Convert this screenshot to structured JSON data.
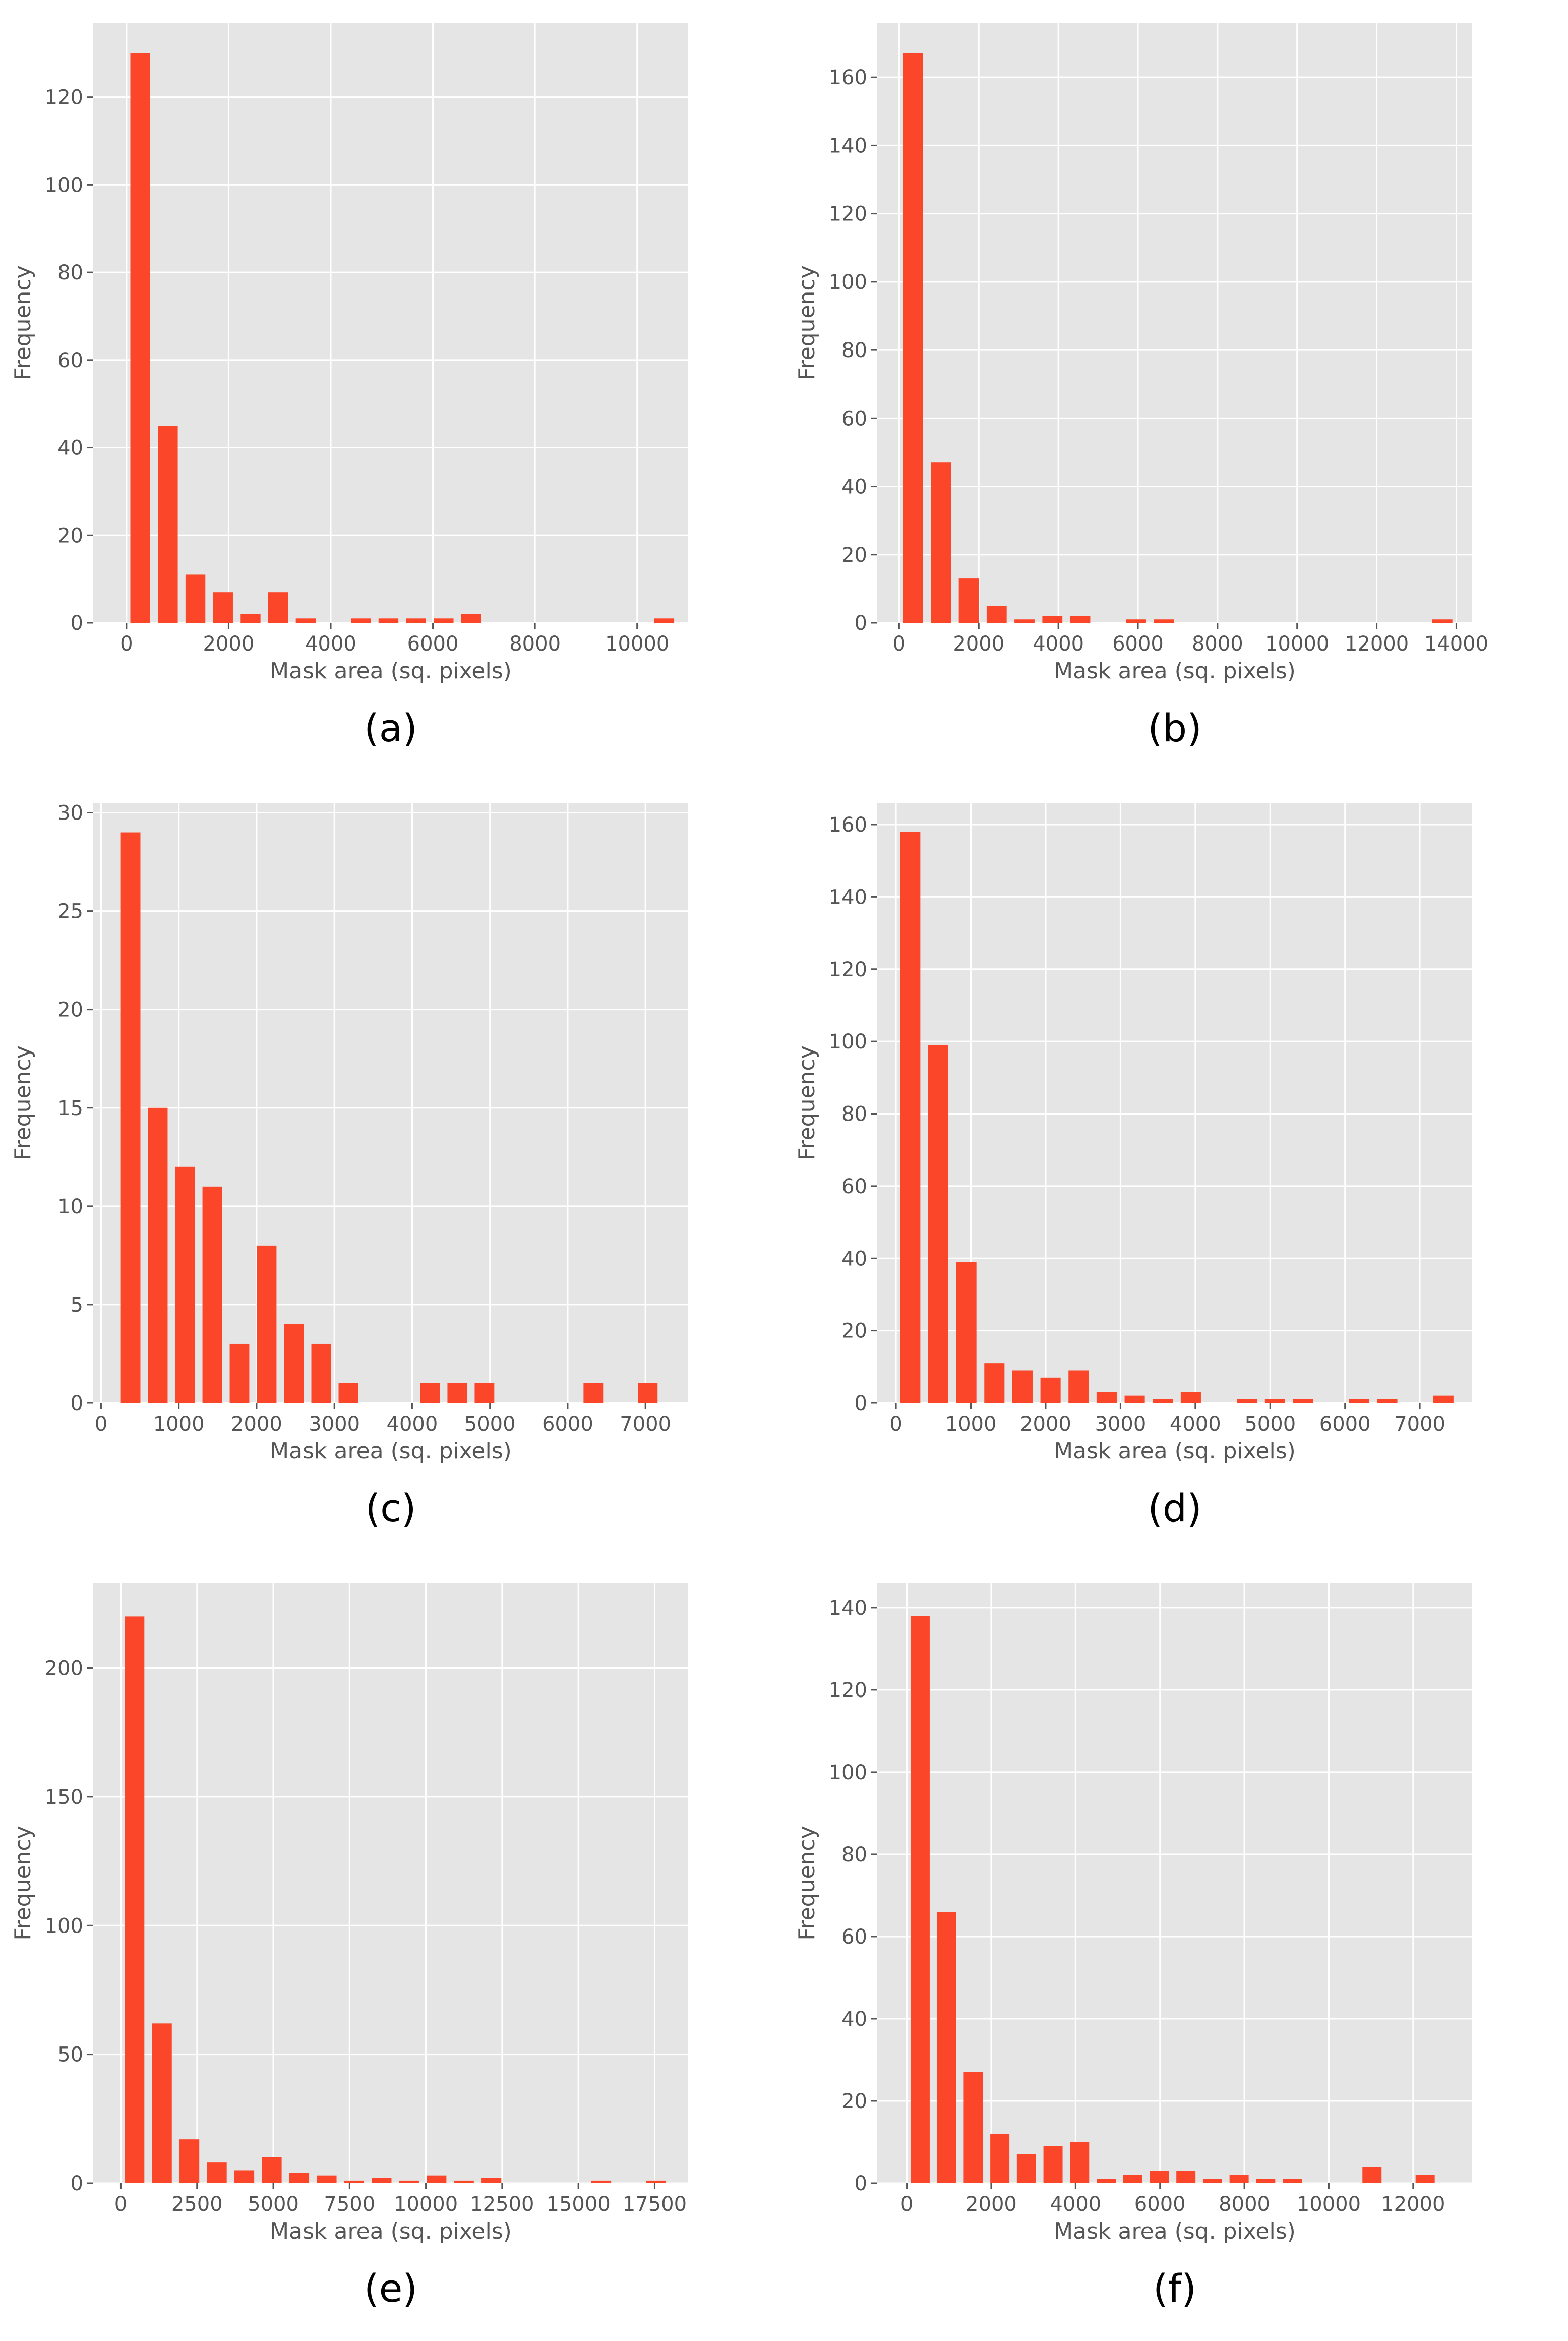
{
  "chart_data": [
    {
      "type": "bar",
      "caption": "(a)",
      "xlabel": "Mask area (sq. pixels)",
      "ylabel": "Frequency",
      "xlim": [
        -650,
        11000
      ],
      "ylim": [
        0,
        137
      ],
      "xticks": [
        0,
        2000,
        4000,
        6000,
        8000,
        10000
      ],
      "yticks": [
        0,
        20,
        40,
        60,
        80,
        100,
        120
      ],
      "bin_width": 540,
      "bins": [
        {
          "x": 270,
          "y": 130
        },
        {
          "x": 810,
          "y": 45
        },
        {
          "x": 1350,
          "y": 11
        },
        {
          "x": 1890,
          "y": 7
        },
        {
          "x": 2430,
          "y": 2
        },
        {
          "x": 2970,
          "y": 7
        },
        {
          "x": 3510,
          "y": 1
        },
        {
          "x": 4590,
          "y": 1
        },
        {
          "x": 5130,
          "y": 1
        },
        {
          "x": 5670,
          "y": 1
        },
        {
          "x": 6210,
          "y": 1
        },
        {
          "x": 6750,
          "y": 2
        },
        {
          "x": 10530,
          "y": 1
        }
      ]
    },
    {
      "type": "bar",
      "caption": "(b)",
      "xlabel": "Mask area (sq. pixels)",
      "ylabel": "Frequency",
      "xlim": [
        -550,
        14400
      ],
      "ylim": [
        0,
        176
      ],
      "xticks": [
        0,
        2000,
        4000,
        6000,
        8000,
        10000,
        12000,
        14000
      ],
      "yticks": [
        0,
        20,
        40,
        60,
        80,
        100,
        120,
        140,
        160
      ],
      "bin_width": 700,
      "bins": [
        {
          "x": 350,
          "y": 167
        },
        {
          "x": 1050,
          "y": 47
        },
        {
          "x": 1750,
          "y": 13
        },
        {
          "x": 2450,
          "y": 5
        },
        {
          "x": 3150,
          "y": 1
        },
        {
          "x": 3850,
          "y": 2
        },
        {
          "x": 4550,
          "y": 2
        },
        {
          "x": 5950,
          "y": 1
        },
        {
          "x": 6650,
          "y": 1
        },
        {
          "x": 13650,
          "y": 1
        }
      ]
    },
    {
      "type": "bar",
      "caption": "(c)",
      "xlabel": "Mask area (sq. pixels)",
      "ylabel": "Frequency",
      "xlim": [
        -100,
        7550
      ],
      "ylim": [
        0,
        30.5
      ],
      "xticks": [
        0,
        1000,
        2000,
        3000,
        4000,
        5000,
        6000,
        7000
      ],
      "yticks": [
        0,
        5,
        10,
        15,
        20,
        25,
        30
      ],
      "bin_width": 350,
      "bins": [
        {
          "x": 380,
          "y": 29
        },
        {
          "x": 730,
          "y": 15
        },
        {
          "x": 1080,
          "y": 12
        },
        {
          "x": 1430,
          "y": 11
        },
        {
          "x": 1780,
          "y": 3
        },
        {
          "x": 2130,
          "y": 8
        },
        {
          "x": 2480,
          "y": 4
        },
        {
          "x": 2830,
          "y": 3
        },
        {
          "x": 3180,
          "y": 1
        },
        {
          "x": 4230,
          "y": 1
        },
        {
          "x": 4580,
          "y": 1
        },
        {
          "x": 4930,
          "y": 1
        },
        {
          "x": 6330,
          "y": 1
        },
        {
          "x": 7030,
          "y": 1
        }
      ]
    },
    {
      "type": "bar",
      "caption": "(d)",
      "xlabel": "Mask area (sq. pixels)",
      "ylabel": "Frequency",
      "xlim": [
        -250,
        7700
      ],
      "ylim": [
        0,
        166
      ],
      "xticks": [
        0,
        1000,
        2000,
        3000,
        4000,
        5000,
        6000,
        7000
      ],
      "yticks": [
        0,
        20,
        40,
        60,
        80,
        100,
        120,
        140,
        160
      ],
      "bin_width": 375,
      "bins": [
        {
          "x": 190,
          "y": 158
        },
        {
          "x": 565,
          "y": 99
        },
        {
          "x": 940,
          "y": 39
        },
        {
          "x": 1315,
          "y": 11
        },
        {
          "x": 1690,
          "y": 9
        },
        {
          "x": 2065,
          "y": 7
        },
        {
          "x": 2440,
          "y": 9
        },
        {
          "x": 2815,
          "y": 3
        },
        {
          "x": 3190,
          "y": 2
        },
        {
          "x": 3565,
          "y": 1
        },
        {
          "x": 3940,
          "y": 3
        },
        {
          "x": 4690,
          "y": 1
        },
        {
          "x": 5065,
          "y": 1
        },
        {
          "x": 5440,
          "y": 1
        },
        {
          "x": 6190,
          "y": 1
        },
        {
          "x": 6565,
          "y": 1
        },
        {
          "x": 7315,
          "y": 2
        }
      ]
    },
    {
      "type": "bar",
      "caption": "(e)",
      "xlabel": "Mask area (sq. pixels)",
      "ylabel": "Frequency",
      "xlim": [
        -900,
        18600
      ],
      "ylim": [
        0,
        233
      ],
      "xticks": [
        0,
        2500,
        5000,
        7500,
        10000,
        12500,
        15000,
        17500
      ],
      "yticks": [
        0,
        50,
        100,
        150,
        200
      ],
      "bin_width": 900,
      "bins": [
        {
          "x": 450,
          "y": 220
        },
        {
          "x": 1350,
          "y": 62
        },
        {
          "x": 2250,
          "y": 17
        },
        {
          "x": 3150,
          "y": 8
        },
        {
          "x": 4050,
          "y": 5
        },
        {
          "x": 4950,
          "y": 10
        },
        {
          "x": 5850,
          "y": 4
        },
        {
          "x": 6750,
          "y": 3
        },
        {
          "x": 7650,
          "y": 1
        },
        {
          "x": 8550,
          "y": 2
        },
        {
          "x": 9450,
          "y": 1
        },
        {
          "x": 10350,
          "y": 3
        },
        {
          "x": 11250,
          "y": 1
        },
        {
          "x": 12150,
          "y": 2
        },
        {
          "x": 15750,
          "y": 1
        },
        {
          "x": 17550,
          "y": 1
        }
      ]
    },
    {
      "type": "bar",
      "caption": "(f)",
      "xlabel": "Mask area (sq. pixels)",
      "ylabel": "Frequency",
      "xlim": [
        -700,
        13400
      ],
      "ylim": [
        0,
        146
      ],
      "xticks": [
        0,
        2000,
        4000,
        6000,
        8000,
        10000,
        12000
      ],
      "yticks": [
        0,
        20,
        40,
        60,
        80,
        100,
        120,
        140
      ],
      "bin_width": 630,
      "bins": [
        {
          "x": 315,
          "y": 138
        },
        {
          "x": 945,
          "y": 66
        },
        {
          "x": 1575,
          "y": 27
        },
        {
          "x": 2205,
          "y": 12
        },
        {
          "x": 2835,
          "y": 7
        },
        {
          "x": 3465,
          "y": 9
        },
        {
          "x": 4095,
          "y": 10
        },
        {
          "x": 4725,
          "y": 1
        },
        {
          "x": 5355,
          "y": 2
        },
        {
          "x": 5985,
          "y": 3
        },
        {
          "x": 6615,
          "y": 3
        },
        {
          "x": 7245,
          "y": 1
        },
        {
          "x": 7875,
          "y": 2
        },
        {
          "x": 8505,
          "y": 1
        },
        {
          "x": 9135,
          "y": 1
        },
        {
          "x": 11025,
          "y": 4
        },
        {
          "x": 12285,
          "y": 2
        }
      ]
    }
  ],
  "colors": {
    "bar": "#fc4629",
    "plot_bg": "#e5e5e5",
    "grid": "#ffffff",
    "text": "#555555"
  }
}
